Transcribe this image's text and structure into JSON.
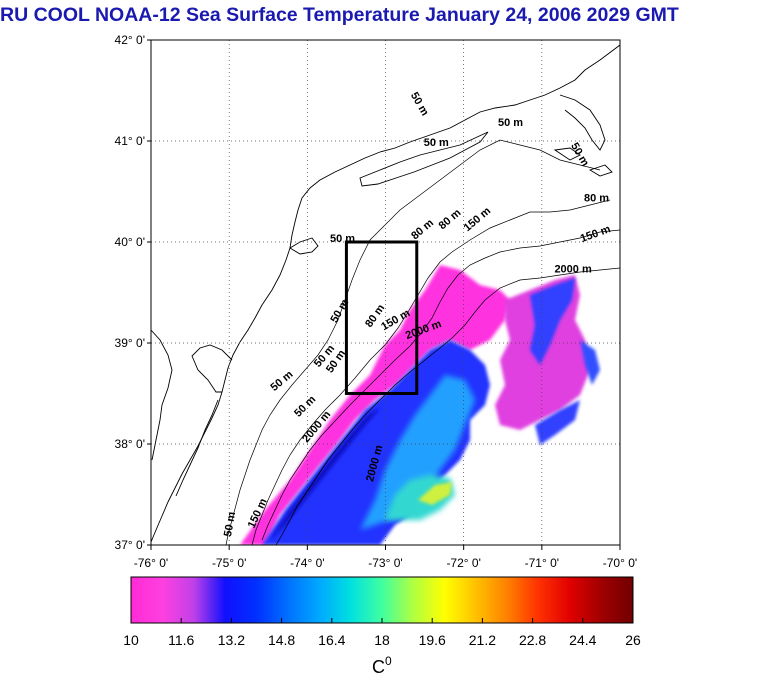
{
  "title": "RU COOL  NOAA-12 Sea Surface Temperature January 24, 2006 2029 GMT",
  "map": {
    "lon_range": [
      -76,
      -70
    ],
    "lat_range": [
      37,
      42
    ],
    "lon_ticks": [
      {
        "value": -76,
        "label": "-76° 0'"
      },
      {
        "value": -75,
        "label": "-75° 0'"
      },
      {
        "value": -74,
        "label": "-74° 0'"
      },
      {
        "value": -73,
        "label": "-73° 0'"
      },
      {
        "value": -72,
        "label": "-72° 0'"
      },
      {
        "value": -71,
        "label": "-71° 0'"
      },
      {
        "value": -70,
        "label": "-70° 0'"
      }
    ],
    "lat_ticks": [
      {
        "value": 42,
        "label": "42° 0'"
      },
      {
        "value": 41,
        "label": "41° 0'"
      },
      {
        "value": 40,
        "label": "40° 0'"
      },
      {
        "value": 39,
        "label": "39° 0'"
      },
      {
        "value": 38,
        "label": "38° 0'"
      },
      {
        "value": 37,
        "label": "37° 0'"
      }
    ],
    "grid": "dotted",
    "study_box": {
      "lon_min": -73.5,
      "lon_max": -72.6,
      "lat_min": 38.5,
      "lat_max": 40.0
    },
    "contour_labels": [
      {
        "text": "50 m",
        "lon": -71.4,
        "lat": 41.15,
        "rot": 0
      },
      {
        "text": "50 m",
        "lon": -72.6,
        "lat": 41.35,
        "rot": 60
      },
      {
        "text": "50 m",
        "lon": -72.35,
        "lat": 40.95,
        "rot": 0
      },
      {
        "text": "50 m",
        "lon": -70.55,
        "lat": 40.85,
        "rot": 60
      },
      {
        "text": "80 m",
        "lon": -70.3,
        "lat": 40.4,
        "rot": 0
      },
      {
        "text": "150 m",
        "lon": -70.3,
        "lat": 40.05,
        "rot": -20
      },
      {
        "text": "150 m",
        "lon": -71.8,
        "lat": 40.2,
        "rot": -40
      },
      {
        "text": "80 m",
        "lon": -72.15,
        "lat": 40.2,
        "rot": -40
      },
      {
        "text": "80 m",
        "lon": -72.5,
        "lat": 40.1,
        "rot": -40
      },
      {
        "text": "2000 m",
        "lon": -70.6,
        "lat": 39.7,
        "rot": 0
      },
      {
        "text": "50 m",
        "lon": -73.55,
        "lat": 40.0,
        "rot": 0
      },
      {
        "text": "50 m",
        "lon": -73.55,
        "lat": 39.3,
        "rot": -60
      },
      {
        "text": "80 m",
        "lon": -73.1,
        "lat": 39.25,
        "rot": -55
      },
      {
        "text": "150 m",
        "lon": -72.85,
        "lat": 39.2,
        "rot": -30
      },
      {
        "text": "2000 m",
        "lon": -72.5,
        "lat": 39.1,
        "rot": -20
      },
      {
        "text": "50 m",
        "lon": -73.75,
        "lat": 38.85,
        "rot": -50
      },
      {
        "text": "50 m",
        "lon": -73.6,
        "lat": 38.8,
        "rot": -55
      },
      {
        "text": "50 m",
        "lon": -74.3,
        "lat": 38.6,
        "rot": -40
      },
      {
        "text": "50 m",
        "lon": -74.0,
        "lat": 38.35,
        "rot": -45
      },
      {
        "text": "2000 m",
        "lon": -73.85,
        "lat": 38.15,
        "rot": -50
      },
      {
        "text": "2000 m",
        "lon": -73.1,
        "lat": 37.8,
        "rot": -75
      },
      {
        "text": "150 m",
        "lon": -74.6,
        "lat": 37.3,
        "rot": -65
      },
      {
        "text": "50 m",
        "lon": -74.95,
        "lat": 37.2,
        "rot": -80
      }
    ]
  },
  "colorbar": {
    "ticks": [
      "10",
      "11.6",
      "13.2",
      "14.8",
      "16.4",
      "18",
      "19.6",
      "21.2",
      "22.8",
      "24.4",
      "26"
    ],
    "stops": [
      "#ff2ad6",
      "#ff40e0",
      "#c040e8",
      "#1010ff",
      "#0030ff",
      "#0070ff",
      "#00a8ff",
      "#00e0e0",
      "#40ffa0",
      "#b0ff40",
      "#ffff00",
      "#ffc000",
      "#ff8000",
      "#ff3000",
      "#e00000",
      "#a00000",
      "#700000"
    ],
    "unit": "C",
    "unit_sup": "0"
  }
}
